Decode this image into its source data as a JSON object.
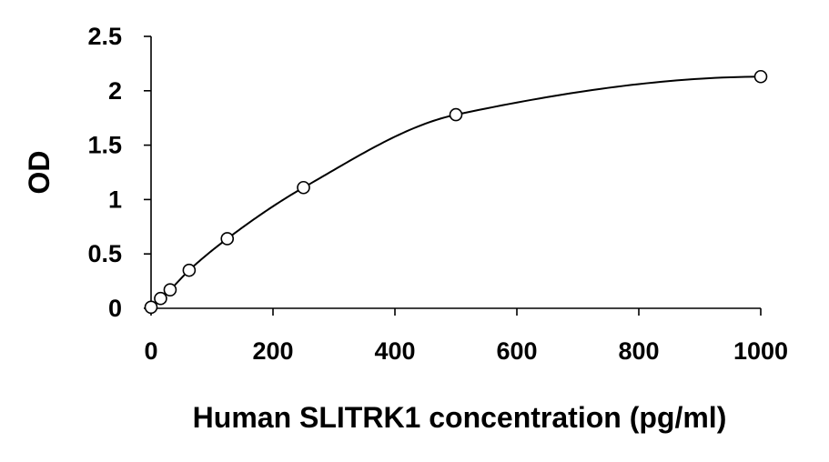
{
  "chart_data": {
    "type": "scatter",
    "title": "",
    "xlabel": "Human SLITRK1 concentration (pg/ml)",
    "ylabel": "OD",
    "xlim": [
      0,
      1000
    ],
    "ylim": [
      0,
      2.5
    ],
    "x_ticks": [
      "0",
      "200",
      "400",
      "600",
      "800",
      "1000"
    ],
    "y_ticks": [
      "0",
      "0.5",
      "1",
      "1.5",
      "2",
      "2.5"
    ],
    "grid": false,
    "legend": "none",
    "series": [
      {
        "marker": "open-circle",
        "trendline": "smooth-curve",
        "x": [
          0,
          15.6,
          31.25,
          62.5,
          125,
          250,
          500,
          1000
        ],
        "y": [
          0.01,
          0.09,
          0.17,
          0.35,
          0.64,
          1.11,
          1.78,
          2.13
        ]
      }
    ],
    "colors": {
      "marker": "#000000",
      "line": "#000000",
      "axis": "#000000"
    }
  }
}
